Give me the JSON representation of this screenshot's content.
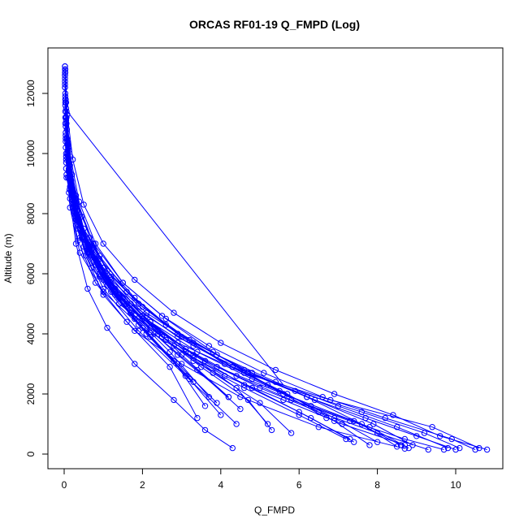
{
  "chart_data": {
    "type": "line",
    "title": "ORCAS RF01-19 Q_FMPD (Log)",
    "xlabel": "Q_FMPD",
    "ylabel": "Altitude (m)",
    "xlim": [
      0,
      11
    ],
    "ylim": [
      0,
      13000
    ],
    "x_ticks": [
      0,
      2,
      4,
      6,
      8,
      10
    ],
    "y_ticks": [
      0,
      2000,
      4000,
      6000,
      8000,
      10000,
      12000
    ],
    "grid": false,
    "legend": "none",
    "marker": "open-circle",
    "series_color": "#0000ff",
    "series": [
      {
        "x": [
          0.03,
          0.05,
          0.08,
          0.15,
          0.3,
          0.6,
          1.1,
          1.8,
          2.8,
          3.6,
          4.3
        ],
        "y": [
          12800,
          11500,
          10000,
          8500,
          7000,
          5500,
          4200,
          3000,
          1800,
          800,
          200
        ]
      },
      {
        "x": [
          0.02,
          0.06,
          0.12,
          0.25,
          0.55,
          1.0,
          1.8,
          3.0,
          4.5,
          6.5,
          8.7
        ],
        "y": [
          12500,
          11000,
          9500,
          8000,
          6600,
          5300,
          4100,
          3000,
          1900,
          900,
          180
        ]
      },
      {
        "x": [
          0.02,
          0.04,
          0.1,
          0.2,
          0.45,
          0.9,
          1.7,
          2.9,
          4.6,
          6.8,
          9.4,
          10.6
        ],
        "y": [
          12900,
          11800,
          10200,
          8800,
          7400,
          6000,
          4800,
          3700,
          2700,
          1800,
          900,
          200
        ]
      },
      {
        "x": [
          0.03,
          0.1,
          0.3,
          0.7,
          1.4,
          2.5,
          3.9,
          5.6,
          7.4,
          8.6
        ],
        "y": [
          11000,
          9200,
          7600,
          6200,
          5000,
          3900,
          2900,
          2000,
          1100,
          300
        ]
      },
      {
        "x": [
          0.02,
          0.08,
          0.2,
          0.5,
          1.0,
          1.9,
          3.1,
          4.4
        ],
        "y": [
          12200,
          10300,
          8500,
          6900,
          5500,
          4100,
          2600,
          1000
        ]
      },
      {
        "x": [
          0.04,
          0.12,
          0.35,
          0.8,
          1.6,
          2.7,
          3.4
        ],
        "y": [
          10500,
          8700,
          7100,
          5700,
          4400,
          2900,
          1200
        ]
      },
      {
        "x": [
          0.03,
          0.07,
          0.18,
          0.4,
          0.9,
          1.7,
          2.9,
          4.3,
          5.9,
          7.6,
          9.2,
          10.1
        ],
        "y": [
          12000,
          10500,
          9000,
          7500,
          6200,
          5000,
          3900,
          2900,
          2100,
          1400,
          700,
          200
        ]
      },
      {
        "x": [
          0.05,
          0.15,
          0.4,
          1.0,
          2.0,
          3.3,
          4.8,
          6.3,
          7.4
        ],
        "y": [
          9800,
          8200,
          6700,
          5400,
          4200,
          3200,
          2200,
          1200,
          400
        ]
      },
      {
        "x": [
          0.02,
          0.06,
          0.15,
          0.35,
          0.7,
          1.3,
          2.2,
          3.3
        ],
        "y": [
          12600,
          11200,
          9600,
          8100,
          6700,
          5300,
          3900,
          2400
        ]
      },
      {
        "x": [
          0.04,
          0.2,
          0.6,
          1.2,
          2.1,
          3.2,
          4.0
        ],
        "y": [
          10200,
          8400,
          6800,
          5400,
          4000,
          2500,
          1300
        ]
      },
      {
        "x": [
          0.03,
          0.09,
          0.25,
          0.6,
          1.2,
          2.1,
          3.3,
          4.8,
          6.4,
          7.9,
          8.9
        ],
        "y": [
          11800,
          10000,
          8400,
          7000,
          5800,
          4700,
          3700,
          2700,
          1800,
          1000,
          300
        ]
      },
      {
        "x": [
          0.02,
          0.1,
          0.3,
          0.75,
          1.5,
          2.6,
          3.8,
          5.2,
          6.7
        ],
        "y": [
          12400,
          10300,
          8500,
          7000,
          5700,
          4500,
          3400,
          2300,
          1200
        ]
      },
      {
        "x": [
          0.05,
          0.3,
          0.8,
          1.6,
          2.6,
          3.8,
          5.0,
          5.8
        ],
        "y": [
          9500,
          7800,
          6300,
          5000,
          3800,
          2700,
          1700,
          700
        ]
      },
      {
        "x": [
          0.03,
          0.08,
          0.22,
          0.5,
          1.0,
          1.8,
          2.8,
          4.0,
          5.4,
          6.9,
          8.4,
          9.6,
          10.8
        ],
        "y": [
          12700,
          11300,
          9800,
          8300,
          7000,
          5800,
          4700,
          3700,
          2800,
          2000,
          1300,
          600,
          150
        ]
      },
      {
        "x": [
          0.04,
          0.15,
          0.45,
          1.0,
          1.8,
          2.8,
          3.6
        ],
        "y": [
          10700,
          8900,
          7200,
          5800,
          4500,
          3100,
          1600
        ]
      },
      {
        "x": [
          0.02,
          0.05,
          0.12,
          0.3,
          0.65,
          1.2,
          2.0,
          3.0,
          4.2
        ],
        "y": [
          12900,
          11700,
          10100,
          8600,
          7200,
          5900,
          4600,
          3300,
          1900
        ]
      },
      {
        "x": [
          0.06,
          0.4,
          1.0,
          1.9,
          3.0,
          4.3,
          5.7,
          6.9,
          7.8
        ],
        "y": [
          9300,
          7600,
          6200,
          5000,
          3900,
          2900,
          2000,
          1100,
          300
        ]
      },
      {
        "x": [
          0.03,
          0.12,
          0.35,
          0.8,
          1.5,
          2.4,
          3.5,
          4.7,
          5.3
        ],
        "y": [
          11400,
          9500,
          7900,
          6500,
          5200,
          4000,
          2900,
          1800,
          800
        ]
      },
      {
        "x": [
          0.02,
          0.07,
          0.2,
          0.45,
          0.9,
          1.6,
          2.6,
          3.9,
          5.4,
          7.0,
          8.5,
          9.8
        ],
        "y": [
          12300,
          10800,
          9300,
          7900,
          6600,
          5400,
          4300,
          3300,
          2400,
          1600,
          900,
          200
        ]
      },
      {
        "x": [
          0.05,
          0.25,
          0.7,
          1.4,
          2.3,
          3.4,
          4.5
        ],
        "y": [
          10000,
          8200,
          6600,
          5300,
          4000,
          2800,
          1500
        ]
      },
      {
        "x": [
          0.03,
          0.1,
          0.28,
          0.65,
          1.3,
          2.2,
          3.4,
          4.8,
          6.3,
          7.8,
          8.8
        ],
        "y": [
          11600,
          9800,
          8200,
          6800,
          5500,
          4400,
          3400,
          2500,
          1600,
          900,
          200
        ]
      },
      {
        "x": [
          0.04,
          0.2,
          0.55,
          1.1,
          1.9,
          2.9,
          3.9
        ],
        "y": [
          10400,
          8600,
          7000,
          5600,
          4300,
          3000,
          1700
        ]
      },
      {
        "x": [
          0.02,
          0.06,
          0.16,
          0.38,
          0.8,
          1.5,
          2.5,
          3.7,
          5.1,
          6.6,
          8.2,
          9.9,
          10.5
        ],
        "y": [
          12800,
          11400,
          9900,
          8400,
          7000,
          5700,
          4600,
          3600,
          2700,
          1900,
          1200,
          500,
          150
        ]
      },
      {
        "x": [
          0.05,
          0.3,
          0.9,
          1.8,
          2.9,
          4.1,
          5.5,
          6.9,
          8.0
        ],
        "y": [
          9700,
          8000,
          6500,
          5200,
          4000,
          3000,
          2100,
          1200,
          400
        ]
      },
      {
        "x": [
          0.03,
          0.09,
          0.24,
          0.55,
          1.1,
          2.0,
          3.1,
          4.4,
          5.2
        ],
        "y": [
          11900,
          10100,
          8500,
          7100,
          5800,
          4600,
          3400,
          2200,
          1000
        ]
      },
      {
        "x": [
          0.04,
          0.18,
          0.5,
          1.1,
          2.0,
          3.2,
          4.6,
          6.2,
          7.6,
          8.5
        ],
        "y": [
          10900,
          9100,
          7500,
          6100,
          4900,
          3800,
          2800,
          1900,
          1000,
          250
        ]
      },
      {
        "x": [
          0.02,
          0.05,
          0.14,
          0.33,
          0.7,
          1.3,
          2.2,
          3.3,
          4.6,
          6.0,
          7.3
        ],
        "y": [
          12600,
          11100,
          9600,
          8100,
          6800,
          5500,
          4400,
          3300,
          2300,
          1400,
          500
        ]
      },
      {
        "x": [
          0.06,
          0.35,
          0.9,
          1.7,
          2.7,
          3.7
        ],
        "y": [
          9200,
          7500,
          6000,
          4700,
          3400,
          1900
        ]
      },
      {
        "x": [
          0.03,
          0.11,
          0.32,
          0.75,
          1.4,
          2.4,
          3.6,
          5.0,
          6.5,
          8.0,
          9.3
        ],
        "y": [
          11200,
          9400,
          7800,
          6400,
          5200,
          4100,
          3100,
          2200,
          1400,
          700,
          150
        ]
      },
      {
        "x": [
          0.04,
          0.14,
          0.4,
          0.9,
          1.7,
          2.8,
          4.1,
          5.6,
          7.1,
          8.7
        ],
        "y": [
          10600,
          8800,
          7200,
          5900,
          4700,
          3600,
          2600,
          1800,
          1000,
          300
        ]
      },
      {
        "x": [
          0.02,
          0.08,
          0.22,
          0.5,
          1.0,
          1.8,
          2.9,
          4.2
        ],
        "y": [
          12200,
          10400,
          8700,
          7200,
          5900,
          4600,
          3300,
          1900
        ]
      },
      {
        "x": [
          0.05,
          0.22,
          0.6,
          1.3,
          2.2,
          3.3,
          4.6,
          6.0,
          7.2
        ],
        "y": [
          9900,
          8200,
          6700,
          5400,
          4200,
          3100,
          2200,
          1300,
          500
        ]
      },
      {
        "x": [
          0.03,
          0.1,
          0.27,
          0.62,
          1.2,
          2.1,
          3.3,
          4.7,
          6.2,
          7.7,
          9.0,
          10.0
        ],
        "y": [
          11700,
          9900,
          8300,
          6900,
          5700,
          4600,
          3600,
          2700,
          1900,
          1200,
          600,
          150
        ]
      },
      {
        "x": [
          0.02,
          0.05,
          0.13,
          0.3,
          0.65,
          1.2,
          2.0,
          3.1,
          4.4,
          5.8,
          7.3,
          8.7,
          9.7
        ],
        "y": [
          12700,
          11200,
          9700,
          8200,
          6900,
          5600,
          4500,
          3500,
          2600,
          1800,
          1100,
          500,
          150
        ]
      }
    ],
    "long_segment": {
      "x": [
        0.08,
        5.6
      ],
      "y": [
        11400,
        2300
      ]
    }
  }
}
